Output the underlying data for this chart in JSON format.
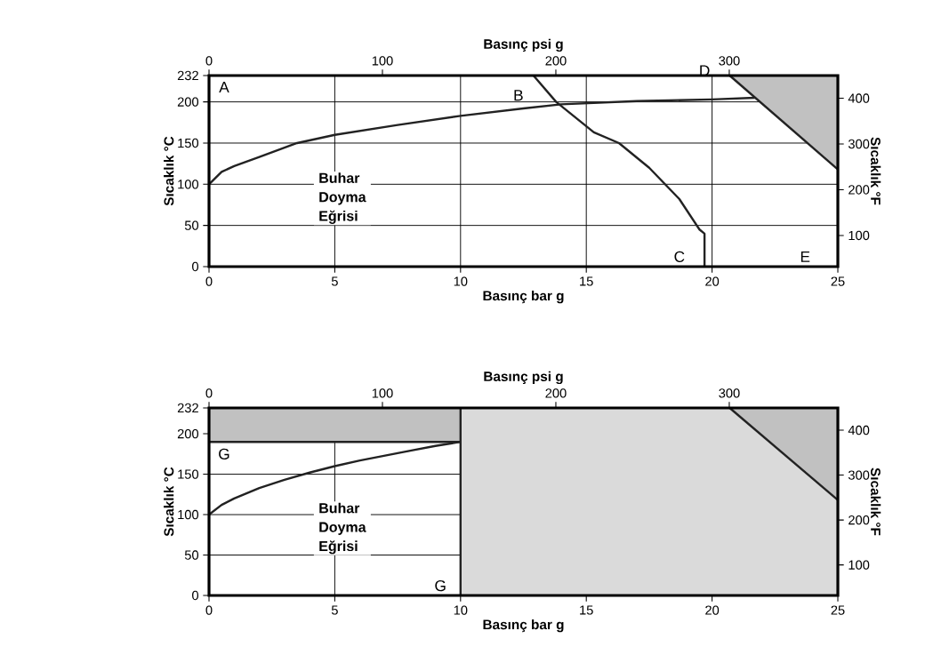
{
  "chart_data": [
    {
      "type": "line",
      "xlabel": "Basınç bar g",
      "x2label": "Basınç psi g",
      "ylabel": "Sıcaklık °C",
      "y2label": "Sıcaklık °F",
      "xlim": [
        0,
        25
      ],
      "xticks": [
        0,
        5,
        10,
        15,
        20,
        25
      ],
      "x2lim": [
        0,
        362.6
      ],
      "x2ticks": [
        0,
        100,
        200,
        300
      ],
      "ylim": [
        0,
        232
      ],
      "yticks": [
        0,
        50,
        100,
        150,
        200,
        232
      ],
      "y2lim": [
        32,
        449.6
      ],
      "y2ticks": [
        100,
        200,
        300,
        400
      ],
      "grid": true,
      "line_style": "solid",
      "series": [
        {
          "color": "#222222",
          "x": [
            0,
            0.5,
            1,
            2,
            3.5,
            5,
            7.5,
            10,
            12.5,
            14,
            17,
            20,
            21.7
          ],
          "values": [
            100,
            115,
            122,
            133,
            150,
            160,
            172,
            183,
            192,
            197,
            201,
            203,
            205
          ]
        },
        {
          "color": "#222222",
          "x": [
            12.9,
            13.8,
            15.3,
            16.3,
            17.5,
            18.7,
            19.5,
            19.7,
            19.7
          ],
          "values": [
            232,
            200,
            163,
            150,
            120,
            82,
            45,
            40,
            0
          ]
        },
        {
          "color": "#222222",
          "x": [
            20.7,
            25
          ],
          "values": [
            232,
            118
          ],
          "lower": [
            232,
            118
          ],
          "upper": [
            232,
            232
          ]
        }
      ],
      "annotations": [
        "A",
        "B",
        "C",
        "D",
        "E",
        "Buhar Doyma Eğrisi"
      ]
    },
    {
      "type": "line",
      "xlabel": "Basınç bar g",
      "x2label": "Basınç psi g",
      "ylabel": "Sıcaklık °C",
      "y2label": "Sıcaklık °F",
      "xlim": [
        0,
        25
      ],
      "xticks": [
        0,
        5,
        10,
        15,
        20,
        25
      ],
      "x2lim": [
        0,
        362.6
      ],
      "x2ticks": [
        0,
        100,
        200,
        300
      ],
      "ylim": [
        0,
        232
      ],
      "yticks": [
        0,
        50,
        100,
        150,
        200,
        232
      ],
      "y2lim": [
        32,
        449.6
      ],
      "y2ticks": [
        100,
        200,
        300,
        400
      ],
      "grid": true,
      "line_style": "solid",
      "series": [
        {
          "color": "#222222",
          "x": [
            0,
            10
          ],
          "values": [
            190,
            190
          ],
          "lower": [
            190,
            190
          ],
          "upper": [
            232,
            232
          ]
        },
        {
          "color": "#222222",
          "x": [
            20.7,
            25
          ],
          "values": [
            232,
            118
          ],
          "lower": [
            232,
            118
          ],
          "upper": [
            232,
            232
          ]
        },
        {
          "color": "#222222",
          "x": [
            0,
            0.5,
            1,
            2,
            3,
            4,
            5,
            6,
            7,
            8,
            9,
            10
          ],
          "values": [
            100,
            112,
            120,
            133,
            143,
            152,
            160,
            167,
            173,
            179,
            185,
            190
          ]
        }
      ],
      "bands": [
        {
          "axis": "x",
          "from": 10,
          "to": 25,
          "color": "#dadada"
        }
      ],
      "ref_lines": [
        {
          "axis": "x",
          "value": 10,
          "color": "#222222"
        }
      ],
      "annotations": [
        "G",
        "G",
        "Buhar Doyma Eğrisi"
      ]
    }
  ]
}
